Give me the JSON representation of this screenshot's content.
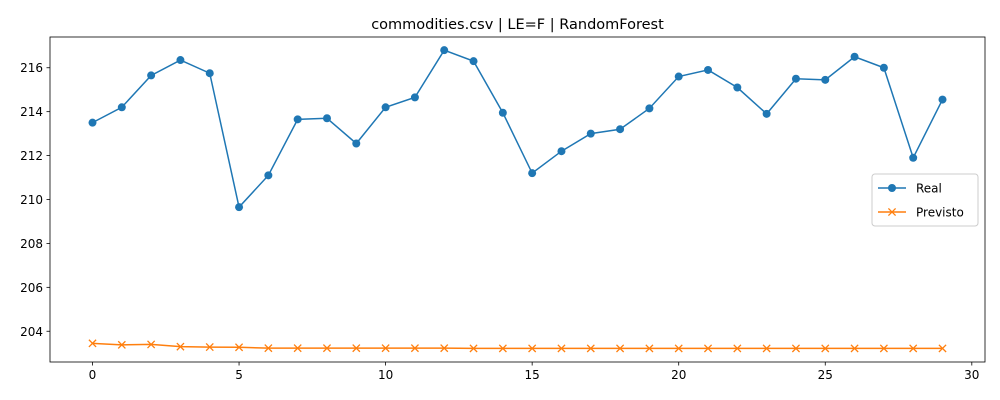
{
  "chart_data": {
    "type": "line",
    "title": "commodities.csv | LE=F | RandomForest",
    "xlabel": "",
    "ylabel": "",
    "x": [
      0,
      1,
      2,
      3,
      4,
      5,
      6,
      7,
      8,
      9,
      10,
      11,
      12,
      13,
      14,
      15,
      16,
      17,
      18,
      19,
      20,
      21,
      22,
      23,
      24,
      25,
      26,
      27,
      28,
      29
    ],
    "xlim": [
      -1.45,
      30.45
    ],
    "ylim": [
      202.6,
      217.4
    ],
    "xticks": [
      0,
      5,
      10,
      15,
      20,
      25,
      30
    ],
    "yticks": [
      204,
      206,
      208,
      210,
      212,
      214,
      216
    ],
    "grid": false,
    "legend_position": "center-right",
    "series": [
      {
        "name": "Real",
        "color": "#1f77b4",
        "marker": "circle",
        "values": [
          213.5,
          214.2,
          215.65,
          216.35,
          215.75,
          209.65,
          211.1,
          213.65,
          213.7,
          212.55,
          214.2,
          214.65,
          216.8,
          216.3,
          213.95,
          211.2,
          212.2,
          213.0,
          213.2,
          214.15,
          215.6,
          215.9,
          215.1,
          213.9,
          215.5,
          215.45,
          216.5,
          216.0,
          211.9,
          214.55
        ]
      },
      {
        "name": "Previsto",
        "color": "#ff7f0e",
        "marker": "x",
        "values": [
          203.45,
          203.38,
          203.4,
          203.3,
          203.28,
          203.27,
          203.23,
          203.23,
          203.23,
          203.23,
          203.23,
          203.23,
          203.23,
          203.22,
          203.22,
          203.22,
          203.22,
          203.22,
          203.22,
          203.22,
          203.22,
          203.22,
          203.22,
          203.22,
          203.22,
          203.22,
          203.22,
          203.22,
          203.22,
          203.22
        ]
      }
    ]
  }
}
